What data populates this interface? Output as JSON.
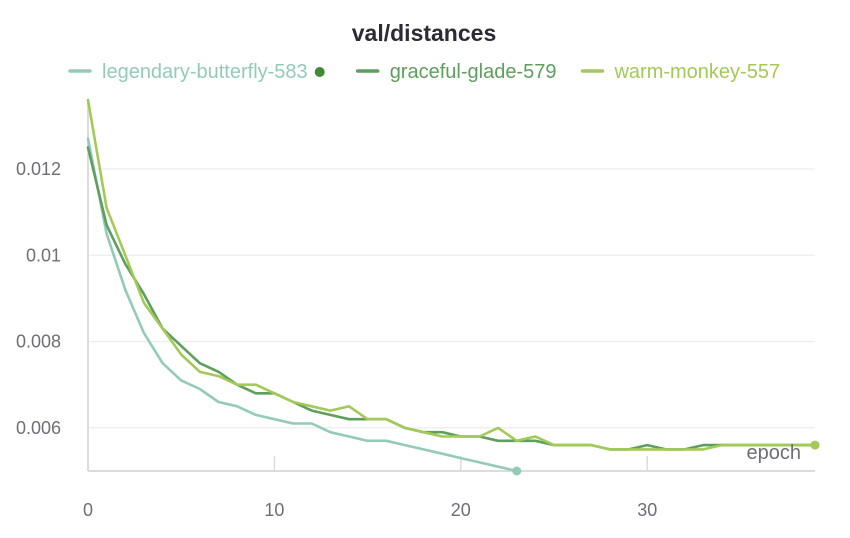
{
  "chart_data": {
    "type": "line",
    "title": "val/distances",
    "xlabel": "epoch",
    "ylabel": "",
    "xlim": [
      0,
      39
    ],
    "ylim": [
      0.005,
      0.0136
    ],
    "xticks": [
      0,
      10,
      20,
      30
    ],
    "xtick_labels": [
      "0",
      "10",
      "20",
      "30"
    ],
    "yticks": [
      0.006,
      0.008,
      0.01,
      0.012
    ],
    "ytick_labels": [
      "0.006",
      "0.008",
      "0.01",
      "0.012"
    ],
    "grid": true,
    "legend_position": "top",
    "series": [
      {
        "name": "legendary-butterfly-583",
        "color": "#93cbb6",
        "marker_end": true,
        "legend_dot": true,
        "x": [
          0,
          1,
          2,
          3,
          4,
          5,
          6,
          7,
          8,
          9,
          10,
          11,
          12,
          13,
          14,
          15,
          16,
          17,
          18,
          19,
          20,
          21,
          22,
          23
        ],
        "values": [
          0.0127,
          0.0105,
          0.0092,
          0.0082,
          0.0075,
          0.0071,
          0.0069,
          0.0066,
          0.0065,
          0.0063,
          0.0062,
          0.0061,
          0.0061,
          0.0059,
          0.0058,
          0.0057,
          0.0057,
          0.0056,
          0.0055,
          0.0054,
          0.0053,
          0.0052,
          0.0051,
          0.005
        ]
      },
      {
        "name": "graceful-glade-579",
        "color": "#5e9e5e",
        "marker_end": false,
        "legend_dot": false,
        "x": [
          0,
          1,
          2,
          3,
          4,
          5,
          6,
          7,
          8,
          9,
          10,
          11,
          12,
          13,
          14,
          15,
          16,
          17,
          18,
          19,
          20,
          21,
          22,
          23,
          24,
          25,
          26,
          27,
          28,
          29,
          30,
          31,
          32,
          33,
          34,
          35,
          36,
          37,
          38,
          39
        ],
        "values": [
          0.0125,
          0.0107,
          0.0098,
          0.0091,
          0.0083,
          0.0079,
          0.0075,
          0.0073,
          0.007,
          0.0068,
          0.0068,
          0.0066,
          0.0064,
          0.0063,
          0.0062,
          0.0062,
          0.0062,
          0.006,
          0.0059,
          0.0059,
          0.0058,
          0.0058,
          0.0057,
          0.0057,
          0.0057,
          0.0056,
          0.0056,
          0.0056,
          0.0055,
          0.0055,
          0.0056,
          0.0055,
          0.0055,
          0.0056,
          0.0056,
          0.0056,
          0.0056,
          0.0056,
          0.0056,
          0.0056
        ]
      },
      {
        "name": "warm-monkey-557",
        "color": "#a3c957",
        "marker_end": true,
        "legend_dot": false,
        "x": [
          0,
          1,
          2,
          3,
          4,
          5,
          6,
          7,
          8,
          9,
          10,
          11,
          12,
          13,
          14,
          15,
          16,
          17,
          18,
          19,
          20,
          21,
          22,
          23,
          24,
          25,
          26,
          27,
          28,
          29,
          30,
          31,
          32,
          33,
          34,
          35,
          36,
          37,
          38,
          39
        ],
        "values": [
          0.0136,
          0.0111,
          0.01,
          0.0089,
          0.0083,
          0.0077,
          0.0073,
          0.0072,
          0.007,
          0.007,
          0.0068,
          0.0066,
          0.0065,
          0.0064,
          0.0065,
          0.0062,
          0.0062,
          0.006,
          0.0059,
          0.0058,
          0.0058,
          0.0058,
          0.006,
          0.0057,
          0.0058,
          0.0056,
          0.0056,
          0.0056,
          0.0055,
          0.0055,
          0.0055,
          0.0055,
          0.0055,
          0.0055,
          0.0056,
          0.0056,
          0.0056,
          0.0056,
          0.0056,
          0.0056
        ]
      }
    ]
  }
}
